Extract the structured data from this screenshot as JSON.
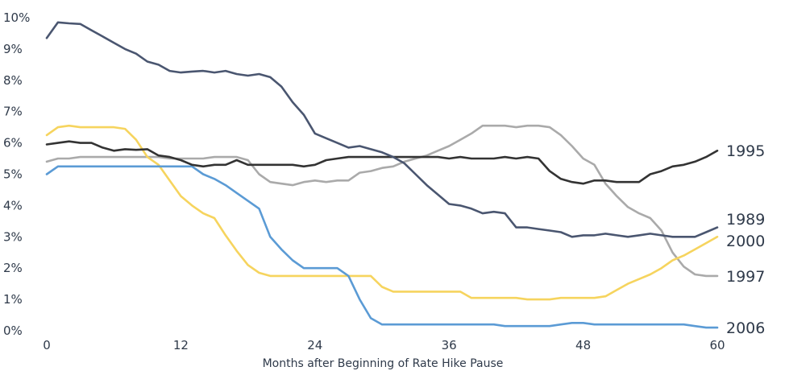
{
  "chart_data": {
    "type": "line",
    "xlabel": "Months after Beginning of Rate Hike Pause",
    "ylabel": "",
    "xlim": [
      0,
      60
    ],
    "ylim": [
      0,
      10
    ],
    "xticks": [
      "0",
      "12",
      "24",
      "36",
      "48",
      "60"
    ],
    "xtick_values": [
      0,
      12,
      24,
      36,
      48,
      60
    ],
    "yticks": [
      "0%",
      "1%",
      "2%",
      "3%",
      "4%",
      "5%",
      "6%",
      "7%",
      "8%",
      "9%",
      "10%"
    ],
    "ytick_values": [
      0,
      1,
      2,
      3,
      4,
      5,
      6,
      7,
      8,
      9,
      10
    ],
    "grid": false,
    "series": [
      {
        "name": "1989",
        "color": "#4a5670",
        "values": [
          9.35,
          9.85,
          9.82,
          9.8,
          9.6,
          9.4,
          9.2,
          9.0,
          8.85,
          8.6,
          8.5,
          8.3,
          8.25,
          8.28,
          8.3,
          8.25,
          8.3,
          8.2,
          8.15,
          8.2,
          8.1,
          7.8,
          7.3,
          6.9,
          6.3,
          6.15,
          6.0,
          5.85,
          5.9,
          5.8,
          5.7,
          5.55,
          5.35,
          5.0,
          4.65,
          4.35,
          4.05,
          4.0,
          3.9,
          3.75,
          3.8,
          3.75,
          3.3,
          3.3,
          3.25,
          3.2,
          3.15,
          3.0,
          3.05,
          3.05,
          3.1,
          3.05,
          3.0,
          3.05,
          3.1,
          3.05,
          3.0,
          3.0,
          3.0,
          3.15,
          3.3
        ]
      },
      {
        "name": "1995",
        "color": "#333333",
        "values": [
          5.95,
          6.0,
          6.05,
          6.0,
          6.0,
          5.85,
          5.75,
          5.8,
          5.78,
          5.8,
          5.6,
          5.55,
          5.45,
          5.3,
          5.25,
          5.3,
          5.3,
          5.45,
          5.3,
          5.3,
          5.3,
          5.3,
          5.3,
          5.25,
          5.3,
          5.45,
          5.5,
          5.55,
          5.55,
          5.55,
          5.55,
          5.55,
          5.55,
          5.55,
          5.55,
          5.55,
          5.5,
          5.55,
          5.5,
          5.5,
          5.5,
          5.55,
          5.5,
          5.55,
          5.5,
          5.1,
          4.85,
          4.75,
          4.7,
          4.8,
          4.8,
          4.75,
          4.75,
          4.75,
          5.0,
          5.1,
          5.25,
          5.3,
          5.4,
          5.55,
          5.75
        ]
      },
      {
        "name": "1997",
        "color": "#aaaaaa",
        "values": [
          5.4,
          5.5,
          5.5,
          5.55,
          5.55,
          5.55,
          5.55,
          5.55,
          5.55,
          5.55,
          5.55,
          5.5,
          5.5,
          5.5,
          5.5,
          5.55,
          5.55,
          5.55,
          5.45,
          5.0,
          4.75,
          4.7,
          4.65,
          4.75,
          4.8,
          4.75,
          4.8,
          4.8,
          5.05,
          5.1,
          5.2,
          5.25,
          5.4,
          5.5,
          5.6,
          5.75,
          5.9,
          6.1,
          6.3,
          6.55,
          6.55,
          6.55,
          6.5,
          6.55,
          6.55,
          6.5,
          6.25,
          5.9,
          5.5,
          5.3,
          4.7,
          4.3,
          3.95,
          3.75,
          3.6,
          3.2,
          2.5,
          2.05,
          1.8,
          1.75,
          1.75
        ]
      },
      {
        "name": "2000",
        "color": "#f6d45e",
        "values": [
          6.25,
          6.5,
          6.55,
          6.5,
          6.5,
          6.5,
          6.5,
          6.45,
          6.1,
          5.55,
          5.3,
          4.8,
          4.3,
          4.0,
          3.75,
          3.6,
          3.05,
          2.55,
          2.1,
          1.85,
          1.75,
          1.75,
          1.75,
          1.75,
          1.75,
          1.75,
          1.75,
          1.75,
          1.75,
          1.75,
          1.4,
          1.25,
          1.25,
          1.25,
          1.25,
          1.25,
          1.25,
          1.25,
          1.05,
          1.05,
          1.05,
          1.05,
          1.05,
          1.0,
          1.0,
          1.0,
          1.05,
          1.05,
          1.05,
          1.05,
          1.1,
          1.3,
          1.5,
          1.65,
          1.8,
          2.0,
          2.25,
          2.4,
          2.6,
          2.8,
          3.0
        ]
      },
      {
        "name": "2006",
        "color": "#5b9bd5",
        "values": [
          5.0,
          5.25,
          5.25,
          5.25,
          5.25,
          5.25,
          5.25,
          5.25,
          5.25,
          5.25,
          5.25,
          5.25,
          5.25,
          5.25,
          5.0,
          4.85,
          4.65,
          4.4,
          4.15,
          3.9,
          3.0,
          2.6,
          2.25,
          2.0,
          2.0,
          2.0,
          2.0,
          1.75,
          1.0,
          0.4,
          0.2,
          0.2,
          0.2,
          0.2,
          0.2,
          0.2,
          0.2,
          0.2,
          0.2,
          0.2,
          0.2,
          0.15,
          0.15,
          0.15,
          0.15,
          0.15,
          0.2,
          0.25,
          0.25,
          0.2,
          0.2,
          0.2,
          0.2,
          0.2,
          0.2,
          0.2,
          0.2,
          0.2,
          0.15,
          0.1,
          0.1
        ]
      }
    ]
  }
}
